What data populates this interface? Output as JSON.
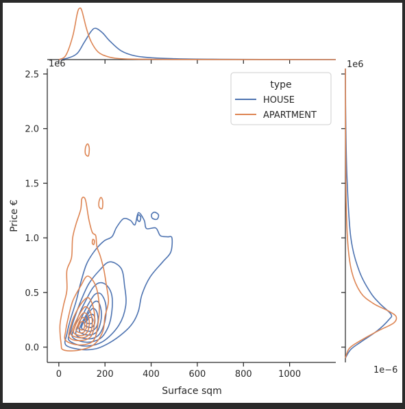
{
  "chart_data": {
    "type": "kde-jointplot",
    "main": {
      "xlabel": "Surface sqm",
      "ylabel": "Price €",
      "xlim": [
        -50,
        1200
      ],
      "ylim": [
        -140000,
        2550000
      ],
      "x_ticks": [
        0,
        200,
        400,
        600,
        800,
        1000
      ],
      "y_ticks": [
        0.0,
        0.5,
        1.0,
        1.5,
        2.0,
        2.5
      ],
      "y_tick_labels": [
        "0.0",
        "0.5",
        "1.0",
        "1.5",
        "2.0",
        "2.5"
      ],
      "y_offset_text": "1e6"
    },
    "legend": {
      "title": "type",
      "placement": "top-right",
      "entries": [
        {
          "label": "HOUSE",
          "color": "#4c72b0"
        },
        {
          "label": "APARTMENT",
          "color": "#dd8452"
        }
      ]
    },
    "series": [
      {
        "name": "HOUSE",
        "color": "#4c72b0",
        "marginal_x": {
          "x": [
            0,
            40,
            80,
            110,
            140,
            160,
            190,
            220,
            270,
            330,
            420,
            550,
            700,
            900,
            1200
          ],
          "density": [
            0.0,
            0.05,
            0.2,
            0.55,
            0.9,
            1.0,
            0.85,
            0.6,
            0.28,
            0.12,
            0.05,
            0.02,
            0.01,
            0.004,
            0.0
          ]
        },
        "marginal_y": {
          "y": [
            -100000,
            -20000,
            50000,
            150000,
            250000,
            300000,
            400000,
            500000,
            700000,
            1000000,
            1500000,
            2000000,
            2550000
          ],
          "density": [
            0.0,
            0.12,
            0.35,
            0.7,
            0.95,
            1.0,
            0.75,
            0.55,
            0.3,
            0.12,
            0.04,
            0.01,
            0.0
          ]
        },
        "contours": [
          [
            [
              30,
              20000
            ],
            [
              90,
              -20000
            ],
            [
              160,
              -15000
            ],
            [
              220,
              40000
            ],
            [
              280,
              130000
            ],
            [
              320,
              220000
            ],
            [
              345,
              330000
            ],
            [
              360,
              480000
            ],
            [
              395,
              640000
            ],
            [
              450,
              780000
            ],
            [
              485,
              870000
            ],
            [
              490,
              1000000
            ],
            [
              470,
              1010000
            ],
            [
              440,
              1020000
            ],
            [
              420,
              1090000
            ],
            [
              380,
              1085000
            ],
            [
              370,
              1160000
            ],
            [
              345,
              1230000
            ],
            [
              330,
              1120000
            ],
            [
              310,
              1160000
            ],
            [
              280,
              1175000
            ],
            [
              250,
              1095000
            ],
            [
              230,
              1010000
            ],
            [
              195,
              970000
            ],
            [
              155,
              880000
            ],
            [
              120,
              760000
            ],
            [
              95,
              590000
            ],
            [
              75,
              420000
            ],
            [
              50,
              250000
            ],
            [
              35,
              120000
            ]
          ],
          [
            [
              45,
              60000
            ],
            [
              110,
              10000
            ],
            [
              190,
              50000
            ],
            [
              260,
              200000
            ],
            [
              290,
              380000
            ],
            [
              285,
              560000
            ],
            [
              270,
              720000
            ],
            [
              220,
              780000
            ],
            [
              175,
              700000
            ],
            [
              130,
              580000
            ],
            [
              95,
              420000
            ],
            [
              65,
              250000
            ],
            [
              50,
              140000
            ]
          ],
          [
            [
              60,
              90000
            ],
            [
              120,
              45000
            ],
            [
              180,
              80000
            ],
            [
              215,
              190000
            ],
            [
              230,
              330000
            ],
            [
              230,
              470000
            ],
            [
              210,
              560000
            ],
            [
              180,
              590000
            ],
            [
              150,
              550000
            ],
            [
              120,
              440000
            ],
            [
              90,
              310000
            ],
            [
              70,
              190000
            ]
          ],
          [
            [
              75,
              110000
            ],
            [
              125,
              75000
            ],
            [
              170,
              105000
            ],
            [
              195,
              200000
            ],
            [
              205,
              320000
            ],
            [
              200,
              420000
            ],
            [
              180,
              490000
            ],
            [
              155,
              480000
            ],
            [
              130,
              400000
            ],
            [
              105,
              300000
            ],
            [
              85,
              200000
            ]
          ],
          [
            [
              90,
              140000
            ],
            [
              130,
              110000
            ],
            [
              165,
              140000
            ],
            [
              180,
              220000
            ],
            [
              185,
              310000
            ],
            [
              175,
              400000
            ],
            [
              160,
              420000
            ],
            [
              140,
              380000
            ],
            [
              120,
              300000
            ],
            [
              100,
              220000
            ]
          ],
          [
            [
              100,
              170000
            ],
            [
              135,
              145000
            ],
            [
              160,
              175000
            ],
            [
              170,
              240000
            ],
            [
              165,
              320000
            ],
            [
              150,
              355000
            ],
            [
              135,
              330000
            ],
            [
              118,
              270000
            ],
            [
              105,
              220000
            ]
          ],
          [
            [
              112,
              200000
            ],
            [
              140,
              180000
            ],
            [
              155,
              215000
            ],
            [
              155,
              275000
            ],
            [
              145,
              300000
            ],
            [
              130,
              285000
            ],
            [
              118,
              245000
            ]
          ],
          [
            [
              120,
              225000
            ],
            [
              140,
              215000
            ],
            [
              148,
              245000
            ],
            [
              142,
              270000
            ],
            [
              130,
              265000
            ]
          ]
        ]
      },
      {
        "name": "APARTMENT",
        "color": "#dd8452",
        "marginal_x": {
          "x": [
            0,
            30,
            60,
            80,
            90,
            100,
            120,
            140,
            170,
            210,
            260,
            350,
            500,
            800,
            1200
          ],
          "density": [
            0.0,
            0.08,
            0.45,
            0.9,
            1.0,
            0.95,
            0.6,
            0.35,
            0.15,
            0.06,
            0.02,
            0.008,
            0.003,
            0.001,
            0.0
          ]
        },
        "marginal_y": {
          "y": [
            -100000,
            -10000,
            60000,
            150000,
            220000,
            280000,
            330000,
            400000,
            500000,
            700000,
            1000000,
            1500000,
            2550000
          ],
          "density": [
            0.0,
            0.08,
            0.3,
            0.65,
            0.95,
            1.0,
            0.85,
            0.55,
            0.3,
            0.12,
            0.04,
            0.01,
            0.0
          ]
        },
        "contours": [
          [
            [
              10,
              30000
            ],
            [
              20,
              -25000
            ],
            [
              80,
              -30000
            ],
            [
              150,
              20000
            ],
            [
              190,
              140000
            ],
            [
              200,
              280000
            ],
            [
              215,
              420000
            ],
            [
              205,
              580000
            ],
            [
              195,
              710000
            ],
            [
              180,
              830000
            ],
            [
              165,
              920000
            ],
            [
              160,
              1020000
            ],
            [
              145,
              1050000
            ],
            [
              130,
              1170000
            ],
            [
              115,
              1350000
            ],
            [
              100,
              1360000
            ],
            [
              95,
              1260000
            ],
            [
              75,
              1130000
            ],
            [
              60,
              1000000
            ],
            [
              55,
              820000
            ],
            [
              35,
              700000
            ],
            [
              35,
              520000
            ],
            [
              20,
              380000
            ],
            [
              5,
              200000
            ]
          ],
          [
            [
              30,
              60000
            ],
            [
              90,
              20000
            ],
            [
              150,
              60000
            ],
            [
              170,
              220000
            ],
            [
              175,
              380000
            ],
            [
              160,
              560000
            ],
            [
              125,
              650000
            ],
            [
              95,
              560000
            ],
            [
              60,
              420000
            ],
            [
              40,
              260000
            ],
            [
              30,
              150000
            ]
          ],
          [
            [
              45,
              90000
            ],
            [
              95,
              60000
            ],
            [
              140,
              100000
            ],
            [
              155,
              230000
            ],
            [
              150,
              360000
            ],
            [
              130,
              450000
            ],
            [
              105,
              420000
            ],
            [
              75,
              320000
            ],
            [
              55,
              220000
            ]
          ],
          [
            [
              55,
              110000
            ],
            [
              100,
              85000
            ],
            [
              135,
              125000
            ],
            [
              145,
              230000
            ],
            [
              135,
              330000
            ],
            [
              115,
              370000
            ],
            [
              95,
              320000
            ],
            [
              75,
              240000
            ],
            [
              60,
              170000
            ]
          ],
          [
            [
              65,
              130000
            ],
            [
              100,
              105000
            ],
            [
              125,
              145000
            ],
            [
              132,
              230000
            ],
            [
              122,
              300000
            ],
            [
              105,
              310000
            ],
            [
              88,
              260000
            ],
            [
              72,
              200000
            ]
          ],
          [
            [
              75,
              150000
            ],
            [
              102,
              130000
            ],
            [
              118,
              170000
            ],
            [
              120,
              230000
            ],
            [
              110,
              270000
            ],
            [
              95,
              255000
            ],
            [
              82,
              200000
            ]
          ],
          [
            [
              85,
              170000
            ],
            [
              105,
              160000
            ],
            [
              112,
              200000
            ],
            [
              105,
              235000
            ],
            [
              92,
              220000
            ]
          ],
          [
            [
              115,
              1770000
            ],
            [
              128,
              1750000
            ],
            [
              132,
              1820000
            ],
            [
              125,
              1860000
            ],
            [
              116,
              1830000
            ]
          ],
          [
            [
              175,
              1280000
            ],
            [
              188,
              1270000
            ],
            [
              190,
              1340000
            ],
            [
              182,
              1370000
            ],
            [
              174,
              1330000
            ]
          ],
          [
            [
              145,
              950000
            ],
            [
              152,
              940000
            ],
            [
              154,
              975000
            ],
            [
              147,
              985000
            ]
          ]
        ]
      }
    ],
    "extra_house_contours": [
      [
        [
          340,
          1170000
        ],
        [
          350,
          1150000
        ],
        [
          355,
          1190000
        ],
        [
          345,
          1210000
        ]
      ],
      [
        [
          405,
          1180000
        ],
        [
          425,
          1170000
        ],
        [
          432,
          1210000
        ],
        [
          415,
          1235000
        ],
        [
          402,
          1215000
        ]
      ]
    ],
    "marginal_y_axis": {
      "offset_text_top": "1e6",
      "offset_text_bottom": "1e−6"
    }
  }
}
